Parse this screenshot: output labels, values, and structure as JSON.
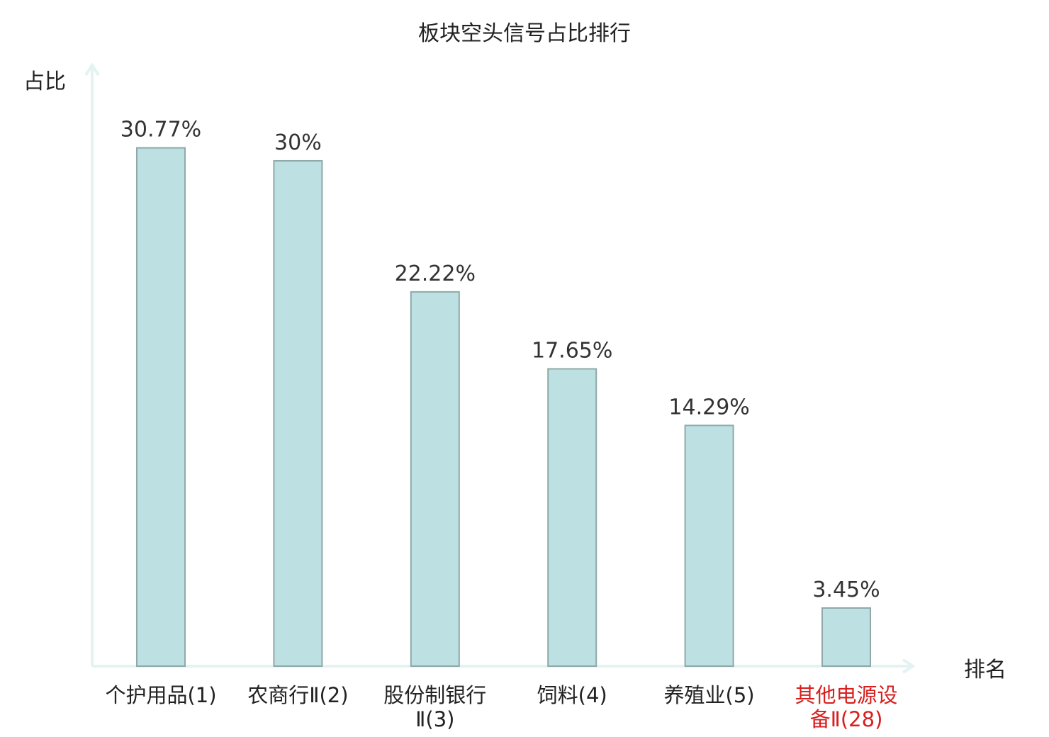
{
  "chart_data": {
    "type": "bar",
    "title": "板块空头信号占比排行",
    "ylabel": "占比",
    "xlabel": "排名",
    "categories": [
      "个护用品(1)",
      "农商行Ⅱ(2)",
      "股份制银行Ⅱ(3)",
      "饲料(4)",
      "养殖业(5)",
      "其他电源设备Ⅱ(28)"
    ],
    "values": [
      30.77,
      30,
      22.22,
      17.65,
      14.29,
      3.45
    ],
    "value_labels": [
      "30.77%",
      "30%",
      "22.22%",
      "17.65%",
      "14.29%",
      "3.45%"
    ],
    "ylim": [
      0,
      34.5
    ],
    "grid": false,
    "highlight_index": 5,
    "colors": {
      "bar_fill": "#bde0e3",
      "bar_stroke": "#8fa9a9",
      "axis": "#e3f3f1",
      "label": "#222222",
      "value_label": "#333333",
      "highlight": "#d91e1e"
    }
  }
}
